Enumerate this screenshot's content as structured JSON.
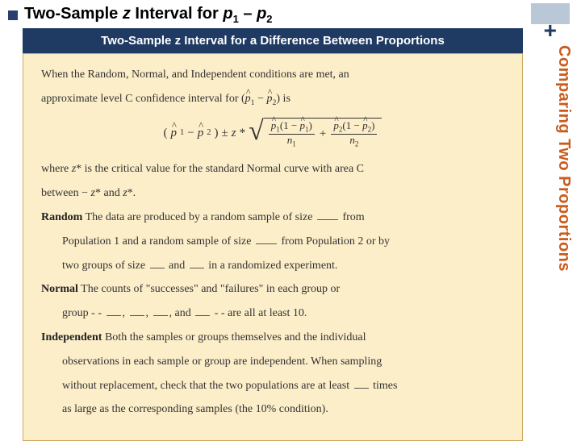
{
  "colors": {
    "bullet": "#2a3f6f",
    "banner_bg": "#1f3a63",
    "banner_text": "#ffffff",
    "content_bg": "#fceec9",
    "content_border": "#cfa85f",
    "side_label": "#c95b1c",
    "plus_box": "#b9c7d6",
    "page_bg": "#ffffff"
  },
  "header": {
    "title_prefix": "Two-Sample ",
    "title_z": "z",
    "title_mid": " Interval for ",
    "title_p1": "p",
    "title_sub1": "1",
    "title_dash": " – ",
    "title_p2": "p",
    "title_sub2": "2",
    "plus": "+"
  },
  "side_label": "Comparing Two Proportions",
  "banner": "Two-Sample z Interval for a Difference Between Proportions",
  "body": {
    "intro1": "When the Random, Normal, and Independent conditions are met, an",
    "intro2_a": "approximate level C confidence interval for (",
    "intro2_b": ") is",
    "formula": {
      "lp": "(",
      "p1": "p",
      "s1": "1",
      "minus": " − ",
      "p2": "p",
      "s2": "2",
      "rp": ")",
      "pm": " ± ",
      "z": "z",
      "star": "*",
      "frac1_num_a": "p",
      "frac1_num_s": "1",
      "frac1_num_b": "(1 − ",
      "frac1_num_c": "p",
      "frac1_num_d": ")",
      "frac1_den": "n",
      "frac1_den_s": "1",
      "plus": " + ",
      "frac2_num_a": "p",
      "frac2_num_s": "2",
      "frac2_num_b": "(1 − ",
      "frac2_num_c": "p",
      "frac2_num_d": ")",
      "frac2_den": "n",
      "frac2_den_s": "2"
    },
    "where1_a": "where ",
    "where1_z": "z",
    "where1_star": "*",
    "where1_b": " is the critical value for the standard Normal curve with area C",
    "where2_a": "between − ",
    "where2_z1": "z",
    "where2_star1": "*",
    "where2_b": " and ",
    "where2_z2": "z",
    "where2_star2": "*",
    "where2_c": ".",
    "random_label": "Random",
    "random_a": " The data are produced by a random sample of size ",
    "random_b": " from",
    "random_line2a": "Population 1 and a random sample of size ",
    "random_line2b": " from Population 2 or by",
    "random_line3a": "two groups of size ",
    "random_line3b": " and ",
    "random_line3c": " in a randomized experiment.",
    "normal_label": "Normal",
    "normal_a": " The counts of \"successes\" and \"failures\" in each group or",
    "normal_line2a": "group - - ",
    "normal_line2b": ", ",
    "normal_line2c": ", ",
    "normal_line2d": ", and ",
    "normal_line2e": " - - are all at least 10.",
    "indep_label": "Independent",
    "indep_a": " Both the samples or groups themselves and the individual",
    "indep_line2": "observations in each sample or group are independent. When sampling",
    "indep_line3a": "without replacement, check that the two populations are at least ",
    "indep_line3b": " times",
    "indep_line4": "as large as the corresponding samples (the 10% condition)."
  }
}
